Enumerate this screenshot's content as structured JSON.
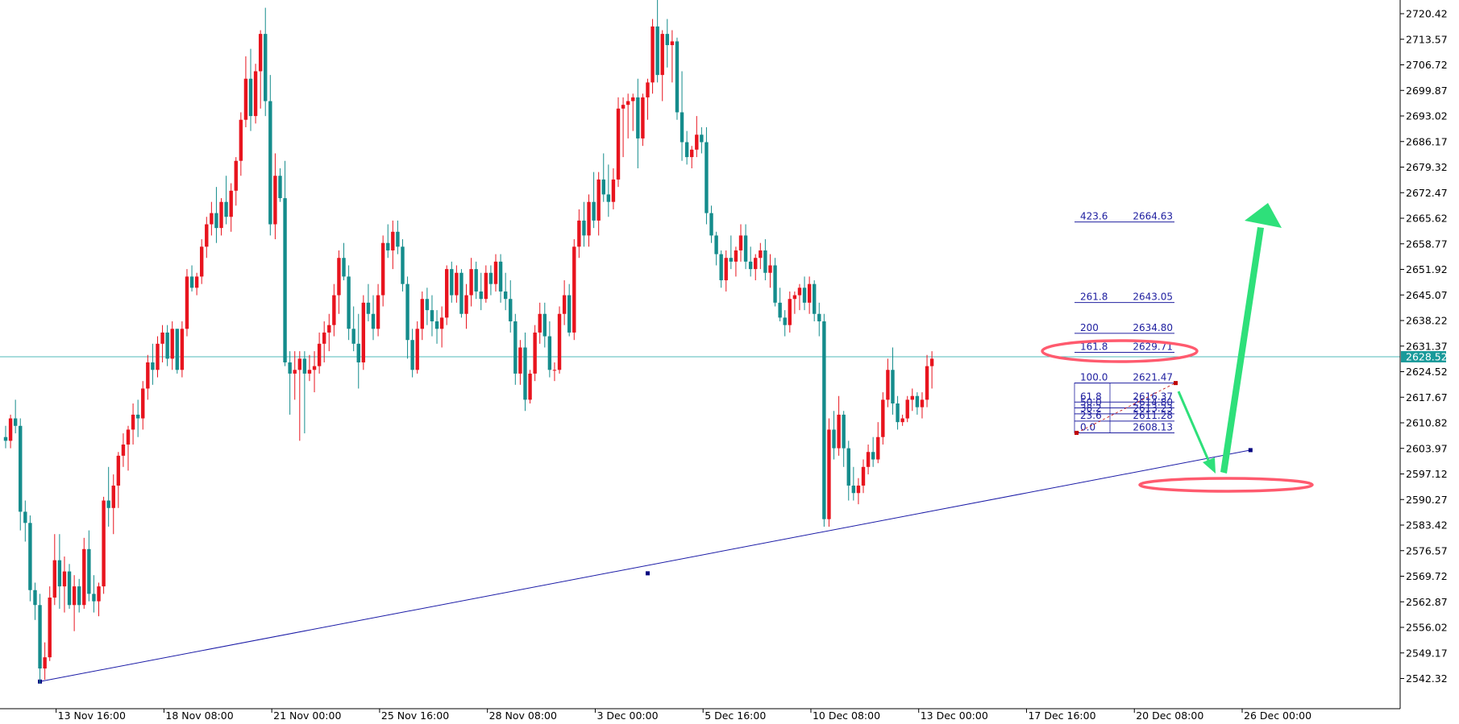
{
  "chart_data": {
    "type": "candlestick",
    "symbol": "",
    "current_price": 2628.52,
    "ylim": [
      2538.5,
      2724.5
    ],
    "y_ticks": [
      2720.42,
      2713.57,
      2706.72,
      2699.87,
      2693.02,
      2686.17,
      2679.32,
      2672.47,
      2665.62,
      2658.77,
      2651.92,
      2645.07,
      2638.22,
      2631.37,
      2624.52,
      2617.67,
      2610.82,
      2603.97,
      2597.12,
      2590.27,
      2583.42,
      2576.57,
      2569.72,
      2562.87,
      2556.02,
      2549.17,
      2542.32
    ],
    "x_ticks": [
      {
        "label": "13 Nov 16:00",
        "bar": 8
      },
      {
        "label": "18 Nov 08:00",
        "bar": 30
      },
      {
        "label": "21 Nov 00:00",
        "bar": 52
      },
      {
        "label": "25 Nov 16:00",
        "bar": 74
      },
      {
        "label": "28 Nov 08:00",
        "bar": 96
      },
      {
        "label": "3 Dec 00:00",
        "bar": 118
      },
      {
        "label": "5 Dec 16:00",
        "bar": 140
      },
      {
        "label": "10 Dec 08:00",
        "bar": 162
      },
      {
        "label": "13 Dec 00:00",
        "bar": 184
      },
      {
        "label": "17 Dec 16:00",
        "bar": 206
      },
      {
        "label": "20 Dec 08:00",
        "bar": 228
      },
      {
        "label": "26 Dec 00:00",
        "bar": 250
      }
    ],
    "candles": [
      [
        2607,
        2610,
        2604,
        2606
      ],
      [
        2606,
        2613,
        2604,
        2612
      ],
      [
        2612,
        2617,
        2608,
        2610
      ],
      [
        2610,
        2612,
        2582,
        2587
      ],
      [
        2587,
        2590,
        2579,
        2584
      ],
      [
        2584,
        2586,
        2563,
        2566
      ],
      [
        2566,
        2568,
        2558,
        2562
      ],
      [
        2562,
        2565,
        2541,
        2545
      ],
      [
        2545,
        2552,
        2542,
        2548
      ],
      [
        2548,
        2567,
        2547,
        2564
      ],
      [
        2564,
        2581,
        2562,
        2574
      ],
      [
        2574,
        2581,
        2561,
        2567
      ],
      [
        2567,
        2575,
        2560,
        2571
      ],
      [
        2571,
        2573,
        2561,
        2562
      ],
      [
        2562,
        2570,
        2555,
        2567
      ],
      [
        2567,
        2569,
        2560,
        2562
      ],
      [
        2562,
        2580,
        2561,
        2577
      ],
      [
        2577,
        2582,
        2563,
        2565
      ],
      [
        2565,
        2570,
        2560,
        2563
      ],
      [
        2563,
        2568,
        2559,
        2567
      ],
      [
        2567,
        2591,
        2565,
        2590
      ],
      [
        2590,
        2599,
        2583,
        2588
      ],
      [
        2588,
        2597,
        2581,
        2594
      ],
      [
        2594,
        2603,
        2588,
        2602
      ],
      [
        2602,
        2608,
        2599,
        2605
      ],
      [
        2605,
        2610,
        2598,
        2609
      ],
      [
        2609,
        2616,
        2605,
        2613
      ],
      [
        2613,
        2617,
        2607,
        2612
      ],
      [
        2612,
        2622,
        2609,
        2620
      ],
      [
        2620,
        2629,
        2617,
        2627
      ],
      [
        2627,
        2632,
        2621,
        2625
      ],
      [
        2625,
        2634,
        2623,
        2632
      ],
      [
        2632,
        2637,
        2627,
        2635
      ],
      [
        2635,
        2637,
        2626,
        2628
      ],
      [
        2628,
        2638,
        2625,
        2636
      ],
      [
        2636,
        2636,
        2624,
        2625
      ],
      [
        2625,
        2638,
        2623,
        2636
      ],
      [
        2636,
        2652,
        2634,
        2650
      ],
      [
        2650,
        2653,
        2646,
        2647
      ],
      [
        2647,
        2651,
        2645,
        2650
      ],
      [
        2650,
        2660,
        2648,
        2658
      ],
      [
        2658,
        2666,
        2655,
        2664
      ],
      [
        2664,
        2670,
        2661,
        2667
      ],
      [
        2667,
        2674,
        2659,
        2663
      ],
      [
        2663,
        2671,
        2661,
        2670
      ],
      [
        2670,
        2677,
        2664,
        2666
      ],
      [
        2666,
        2675,
        2662,
        2673
      ],
      [
        2673,
        2682,
        2669,
        2681
      ],
      [
        2681,
        2694,
        2677,
        2692
      ],
      [
        2692,
        2709,
        2690,
        2703
      ],
      [
        2703,
        2711,
        2689,
        2693
      ],
      [
        2693,
        2707,
        2691,
        2705
      ],
      [
        2705,
        2716,
        2695,
        2715
      ],
      [
        2715,
        2722,
        2693,
        2697
      ],
      [
        2697,
        2704,
        2661,
        2664
      ],
      [
        2664,
        2683,
        2660,
        2677
      ],
      [
        2677,
        2679,
        2670,
        2671
      ],
      [
        2671,
        2681,
        2626,
        2627
      ],
      [
        2627,
        2630,
        2613,
        2624
      ],
      [
        2624,
        2630,
        2617,
        2625
      ],
      [
        2625,
        2630,
        2606,
        2628
      ],
      [
        2628,
        2630,
        2608,
        2624
      ],
      [
        2624,
        2629,
        2622,
        2625
      ],
      [
        2625,
        2630,
        2619,
        2626
      ],
      [
        2626,
        2635,
        2624,
        2632
      ],
      [
        2632,
        2638,
        2627,
        2635
      ],
      [
        2635,
        2640,
        2630,
        2637
      ],
      [
        2637,
        2648,
        2634,
        2645
      ],
      [
        2645,
        2657,
        2640,
        2655
      ],
      [
        2655,
        2659,
        2649,
        2650
      ],
      [
        2650,
        2653,
        2633,
        2636
      ],
      [
        2636,
        2642,
        2630,
        2632
      ],
      [
        2632,
        2640,
        2620,
        2627
      ],
      [
        2627,
        2645,
        2625,
        2643
      ],
      [
        2643,
        2648,
        2638,
        2640
      ],
      [
        2640,
        2645,
        2633,
        2636
      ],
      [
        2636,
        2648,
        2634,
        2645
      ],
      [
        2645,
        2661,
        2642,
        2659
      ],
      [
        2659,
        2664,
        2655,
        2657
      ],
      [
        2657,
        2665,
        2652,
        2662
      ],
      [
        2662,
        2665,
        2656,
        2658
      ],
      [
        2658,
        2660,
        2646,
        2648
      ],
      [
        2648,
        2650,
        2628,
        2633
      ],
      [
        2633,
        2636,
        2623,
        2625
      ],
      [
        2625,
        2638,
        2624,
        2636
      ],
      [
        2636,
        2646,
        2633,
        2644
      ],
      [
        2644,
        2647,
        2637,
        2641
      ],
      [
        2641,
        2645,
        2634,
        2638
      ],
      [
        2638,
        2641,
        2632,
        2636
      ],
      [
        2636,
        2642,
        2631,
        2639
      ],
      [
        2639,
        2653,
        2637,
        2652
      ],
      [
        2652,
        2654,
        2643,
        2645
      ],
      [
        2645,
        2653,
        2643,
        2651
      ],
      [
        2651,
        2652,
        2639,
        2640
      ],
      [
        2640,
        2648,
        2636,
        2645
      ],
      [
        2645,
        2655,
        2642,
        2652
      ],
      [
        2652,
        2654,
        2644,
        2646
      ],
      [
        2646,
        2651,
        2641,
        2644
      ],
      [
        2644,
        2653,
        2643,
        2651
      ],
      [
        2651,
        2653,
        2645,
        2648
      ],
      [
        2648,
        2656,
        2646,
        2654
      ],
      [
        2654,
        2656,
        2643,
        2646
      ],
      [
        2646,
        2651,
        2641,
        2644
      ],
      [
        2644,
        2649,
        2635,
        2638
      ],
      [
        2638,
        2640,
        2621,
        2624
      ],
      [
        2624,
        2633,
        2621,
        2631
      ],
      [
        2631,
        2635,
        2614,
        2617
      ],
      [
        2617,
        2625,
        2616,
        2624
      ],
      [
        2624,
        2637,
        2622,
        2635
      ],
      [
        2635,
        2643,
        2632,
        2640
      ],
      [
        2640,
        2643,
        2631,
        2634
      ],
      [
        2634,
        2638,
        2623,
        2625
      ],
      [
        2625,
        2627,
        2622,
        2625
      ],
      [
        2625,
        2642,
        2624,
        2640
      ],
      [
        2640,
        2649,
        2637,
        2645
      ],
      [
        2645,
        2648,
        2634,
        2635
      ],
      [
        2635,
        2660,
        2633,
        2658
      ],
      [
        2658,
        2668,
        2655,
        2665
      ],
      [
        2665,
        2670,
        2658,
        2661
      ],
      [
        2661,
        2672,
        2658,
        2670
      ],
      [
        2670,
        2678,
        2663,
        2665
      ],
      [
        2665,
        2678,
        2661,
        2676
      ],
      [
        2676,
        2683,
        2670,
        2672
      ],
      [
        2672,
        2680,
        2666,
        2670
      ],
      [
        2670,
        2679,
        2668,
        2676
      ],
      [
        2676,
        2698,
        2674,
        2695
      ],
      [
        2695,
        2698,
        2682,
        2696
      ],
      [
        2696,
        2699,
        2687,
        2697
      ],
      [
        2697,
        2699,
        2689,
        2698
      ],
      [
        2698,
        2703,
        2679,
        2687
      ],
      [
        2687,
        2699,
        2685,
        2698
      ],
      [
        2698,
        2703,
        2692,
        2702
      ],
      [
        2702,
        2719,
        2699,
        2717
      ],
      [
        2717,
        2725,
        2702,
        2704
      ],
      [
        2704,
        2716,
        2697,
        2715
      ],
      [
        2715,
        2719,
        2706,
        2712
      ],
      [
        2712,
        2716,
        2702,
        2713
      ],
      [
        2713,
        2714,
        2692,
        2694
      ],
      [
        2694,
        2705,
        2681,
        2686
      ],
      [
        2686,
        2689,
        2680,
        2682
      ],
      [
        2682,
        2685,
        2679,
        2684
      ],
      [
        2684,
        2693,
        2682,
        2688
      ],
      [
        2688,
        2690,
        2683,
        2686
      ],
      [
        2686,
        2690,
        2664,
        2667
      ],
      [
        2667,
        2669,
        2659,
        2661
      ],
      [
        2661,
        2662,
        2653,
        2656
      ],
      [
        2656,
        2657,
        2647,
        2649
      ],
      [
        2649,
        2657,
        2646,
        2655
      ],
      [
        2655,
        2661,
        2652,
        2654
      ],
      [
        2654,
        2658,
        2650,
        2657
      ],
      [
        2657,
        2664,
        2654,
        2661
      ],
      [
        2661,
        2664,
        2652,
        2654
      ],
      [
        2654,
        2658,
        2650,
        2652
      ],
      [
        2652,
        2656,
        2649,
        2655
      ],
      [
        2655,
        2659,
        2652,
        2657
      ],
      [
        2657,
        2660,
        2649,
        2651
      ],
      [
        2651,
        2656,
        2647,
        2653
      ],
      [
        2653,
        2655,
        2642,
        2643
      ],
      [
        2643,
        2647,
        2638,
        2639
      ],
      [
        2639,
        2641,
        2634,
        2637
      ],
      [
        2637,
        2646,
        2635,
        2644
      ],
      [
        2644,
        2646,
        2640,
        2645
      ],
      [
        2645,
        2648,
        2641,
        2647
      ],
      [
        2647,
        2650,
        2641,
        2643
      ],
      [
        2643,
        2650,
        2640,
        2648
      ],
      [
        2648,
        2649,
        2638,
        2640
      ],
      [
        2640,
        2643,
        2634,
        2638
      ],
      [
        2638,
        2640,
        2583,
        2585
      ],
      [
        2585,
        2612,
        2583,
        2609
      ],
      [
        2609,
        2614,
        2601,
        2604
      ],
      [
        2604,
        2618,
        2602,
        2613
      ],
      [
        2613,
        2614,
        2599,
        2604
      ],
      [
        2604,
        2606,
        2590,
        2594
      ],
      [
        2594,
        2599,
        2590,
        2592
      ],
      [
        2592,
        2596,
        2589,
        2594
      ],
      [
        2594,
        2601,
        2592,
        2599
      ],
      [
        2599,
        2605,
        2597,
        2603
      ],
      [
        2603,
        2607,
        2599,
        2601
      ],
      [
        2601,
        2611,
        2600,
        2607
      ],
      [
        2607,
        2619,
        2605,
        2617
      ],
      [
        2617,
        2628,
        2615,
        2625
      ],
      [
        2625,
        2631,
        2613,
        2616
      ],
      [
        2616,
        2618,
        2609,
        2611
      ],
      [
        2611,
        2613,
        2610,
        2612
      ],
      [
        2612,
        2618,
        2611,
        2617
      ],
      [
        2617,
        2620,
        2614,
        2618
      ],
      [
        2618,
        2619,
        2613,
        2615
      ],
      [
        2615,
        2619,
        2612,
        2617
      ],
      [
        2617,
        2629,
        2615,
        2626
      ],
      [
        2626,
        2630,
        2620,
        2628
      ]
    ],
    "trendline": {
      "start": {
        "bar": 7,
        "price": 2541.5
      },
      "mid": {
        "bar": 131,
        "price": 2570.5
      },
      "end": {
        "bar": 254,
        "price": 2603.5
      }
    },
    "fibonacci": {
      "levels": [
        {
          "ratio": "0.0",
          "price": "2608.13"
        },
        {
          "ratio": "23.6",
          "price": "2611.28"
        },
        {
          "ratio": "38.2",
          "price": "2613.23"
        },
        {
          "ratio": "50.0",
          "price": "2614.80"
        },
        {
          "ratio": "61.8",
          "price": "2616.37"
        },
        {
          "ratio": "100.0",
          "price": "2621.47"
        },
        {
          "ratio": "161.8",
          "price": "2629.71"
        },
        {
          "ratio": "200",
          "price": "2634.80"
        },
        {
          "ratio": "261.8",
          "price": "2643.05"
        },
        {
          "ratio": "423.6",
          "price": "2664.63"
        }
      ]
    },
    "colors": {
      "bull": "#e8141e",
      "bear": "#148c8c",
      "trendline": "#1a1aa6",
      "fib": "#2020a0",
      "bid_line": "#4fb8b8",
      "price_tag_bg": "#1a9a9a",
      "ellipse": "#ff5a6e",
      "arrow": "#2ee07a"
    }
  }
}
